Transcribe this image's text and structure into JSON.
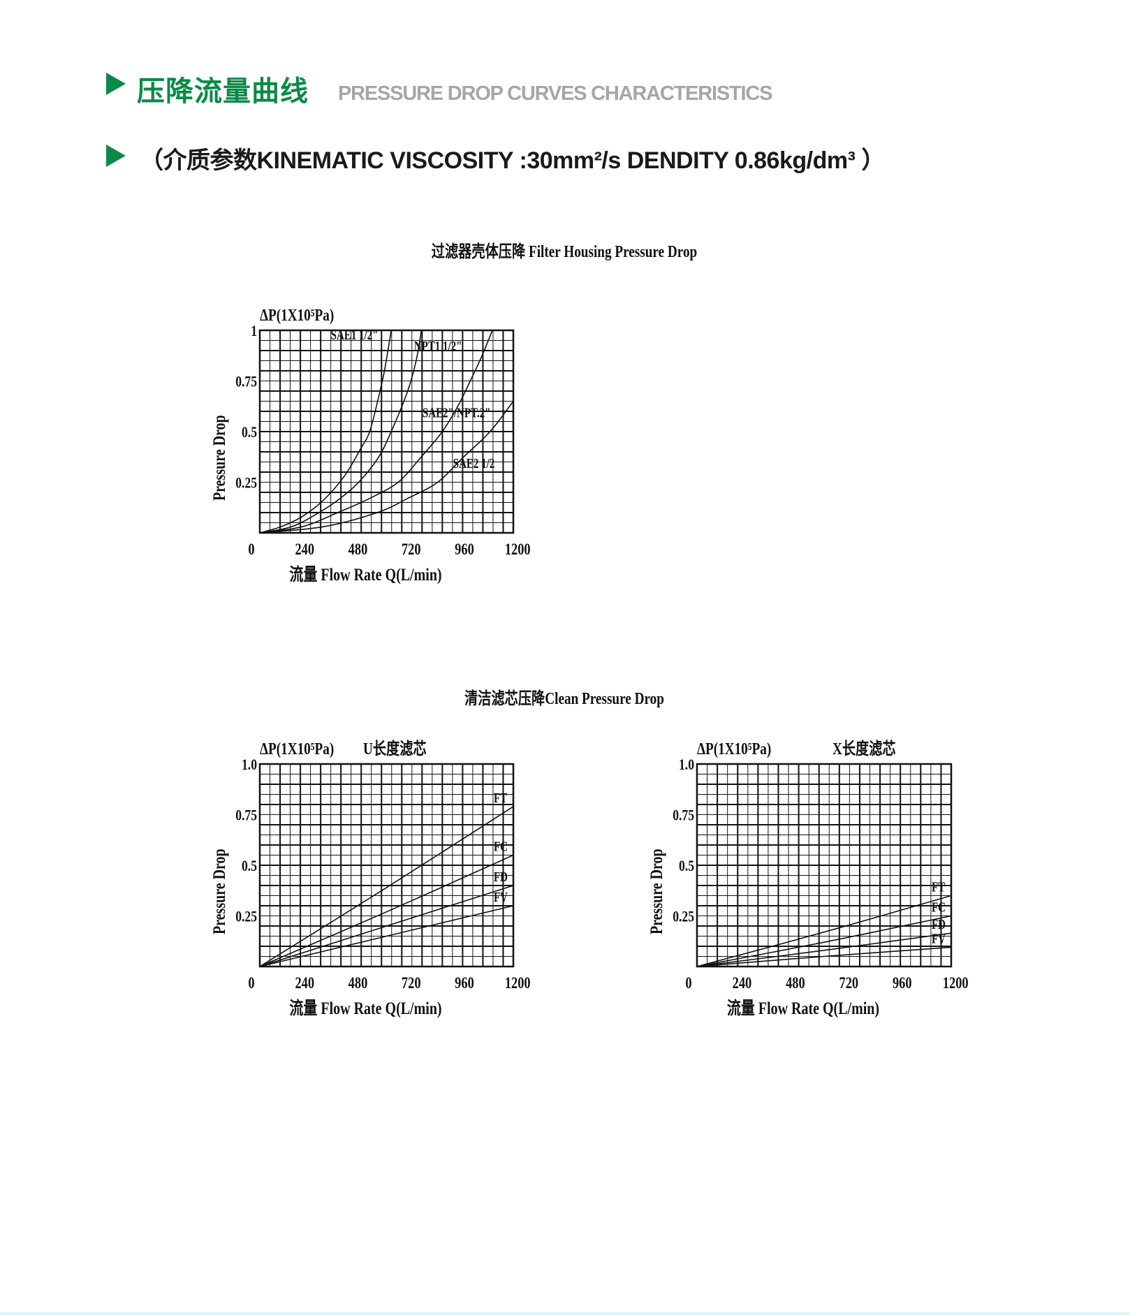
{
  "header": {
    "title_cn": "压降流量曲线",
    "title_en": "PRESSURE DROP CURVES CHARACTERISTICS",
    "subtitle": "（介质参数KINEMATIC VISCOSITY :30mm²/s DENDITY 0.86kg/dm³ ）",
    "accent_color": "#0b8a47",
    "bullet_icon": "triangle-right-icon"
  },
  "sections": {
    "housing_title": "过滤器壳体压降 Filter Housing Pressure Drop",
    "clean_title": "清洁滤芯压降Clean Pressure Drop"
  },
  "chart_data": [
    {
      "type": "line",
      "title": "",
      "unit_label": "ΔP(1X10⁵Pa)",
      "xlabel": "流量 Flow Rate  Q(L/min)",
      "ylabel": "Pressure Drop",
      "xlim": [
        0,
        1200
      ],
      "ylim": [
        0,
        1
      ],
      "xticks": [
        "0",
        "240",
        "480",
        "720",
        "960",
        "1200"
      ],
      "yticks": [
        {
          "v": 1,
          "label": "1"
        },
        {
          "v": 0.75,
          "label": "0.75"
        },
        {
          "v": 0.5,
          "label": "0.5"
        },
        {
          "v": 0.25,
          "label": "0.25"
        }
      ],
      "grid": true,
      "series": [
        {
          "name": "SAE1 1/2\"",
          "points": [
            [
              0,
              0
            ],
            [
              100,
              0.03
            ],
            [
              200,
              0.08
            ],
            [
              300,
              0.16
            ],
            [
              400,
              0.28
            ],
            [
              480,
              0.42
            ],
            [
              520,
              0.5
            ],
            [
              560,
              0.66
            ],
            [
              590,
              0.8
            ],
            [
              622,
              1.0
            ]
          ]
        },
        {
          "name": "NPT1 1/2\"",
          "points": [
            [
              0,
              0
            ],
            [
              150,
              0.03
            ],
            [
              280,
              0.1
            ],
            [
              380,
              0.17
            ],
            [
              468,
              0.25
            ],
            [
              560,
              0.37
            ],
            [
              622,
              0.5
            ],
            [
              700,
              0.7
            ],
            [
              740,
              0.85
            ],
            [
              765,
              1.0
            ]
          ]
        },
        {
          "name": "SAE2\"/NPT.2\"",
          "points": [
            [
              0,
              0
            ],
            [
              200,
              0.03
            ],
            [
              369,
              0.1
            ],
            [
              520,
              0.17
            ],
            [
              655,
              0.25
            ],
            [
              760,
              0.37
            ],
            [
              864,
              0.5
            ],
            [
              940,
              0.63
            ],
            [
              996,
              0.75
            ],
            [
              1050,
              0.87
            ],
            [
              1101,
              1.0
            ]
          ]
        },
        {
          "name": "SAE2 1/2",
          "points": [
            [
              0,
              0
            ],
            [
              300,
              0.03
            ],
            [
              556,
              0.1
            ],
            [
              700,
              0.17
            ],
            [
              842,
              0.25
            ],
            [
              960,
              0.37
            ],
            [
              1090,
              0.5
            ],
            [
              1200,
              0.65
            ]
          ]
        }
      ]
    },
    {
      "type": "line",
      "title": "",
      "unit_label": "ΔP(1X10⁵Pa)",
      "subtitle": "U长度滤芯",
      "xlabel": "流量 Flow Rate  Q(L/min)",
      "ylabel": "Pressure Drop",
      "xlim": [
        0,
        1200
      ],
      "ylim": [
        0,
        1
      ],
      "xticks": [
        "0",
        "240",
        "480",
        "720",
        "960",
        "1200"
      ],
      "yticks": [
        {
          "v": 1,
          "label": "1.0"
        },
        {
          "v": 0.75,
          "label": "0.75"
        },
        {
          "v": 0.5,
          "label": "0.5"
        },
        {
          "v": 0.25,
          "label": "0.25"
        }
      ],
      "grid": true,
      "series": [
        {
          "name": "FT",
          "points": [
            [
              0,
              0
            ],
            [
              600,
              0.39
            ],
            [
              1200,
              0.79
            ]
          ]
        },
        {
          "name": "FC",
          "points": [
            [
              0,
              0
            ],
            [
              600,
              0.27
            ],
            [
              1200,
              0.55
            ]
          ]
        },
        {
          "name": "FD",
          "points": [
            [
              0,
              0
            ],
            [
              600,
              0.2
            ],
            [
              1200,
              0.4
            ]
          ]
        },
        {
          "name": "FV",
          "points": [
            [
              0,
              0
            ],
            [
              600,
              0.15
            ],
            [
              1200,
              0.3
            ]
          ]
        }
      ]
    },
    {
      "type": "line",
      "title": "",
      "unit_label": "ΔP(1X10⁵Pa)",
      "subtitle": "X长度滤芯",
      "xlabel": "流量 Flow Rate  Q(L/min)",
      "ylabel": "Pressure Drop",
      "xlim": [
        0,
        1200
      ],
      "ylim": [
        0,
        1
      ],
      "xticks": [
        "0",
        "240",
        "480",
        "720",
        "960",
        "1200"
      ],
      "yticks": [
        {
          "v": 1,
          "label": "1.0"
        },
        {
          "v": 0.75,
          "label": "0.75"
        },
        {
          "v": 0.5,
          "label": "0.5"
        },
        {
          "v": 0.25,
          "label": "0.25"
        }
      ],
      "grid": true,
      "series": [
        {
          "name": "FT",
          "points": [
            [
              0,
              0
            ],
            [
              600,
              0.17
            ],
            [
              1200,
              0.35
            ]
          ]
        },
        {
          "name": "FC",
          "points": [
            [
              0,
              0
            ],
            [
              600,
              0.12
            ],
            [
              1200,
              0.25
            ]
          ]
        },
        {
          "name": "FD",
          "points": [
            [
              0,
              0
            ],
            [
              600,
              0.08
            ],
            [
              1200,
              0.165
            ]
          ]
        },
        {
          "name": "FV",
          "points": [
            [
              0,
              0
            ],
            [
              600,
              0.05
            ],
            [
              1200,
              0.095
            ]
          ]
        }
      ]
    }
  ]
}
